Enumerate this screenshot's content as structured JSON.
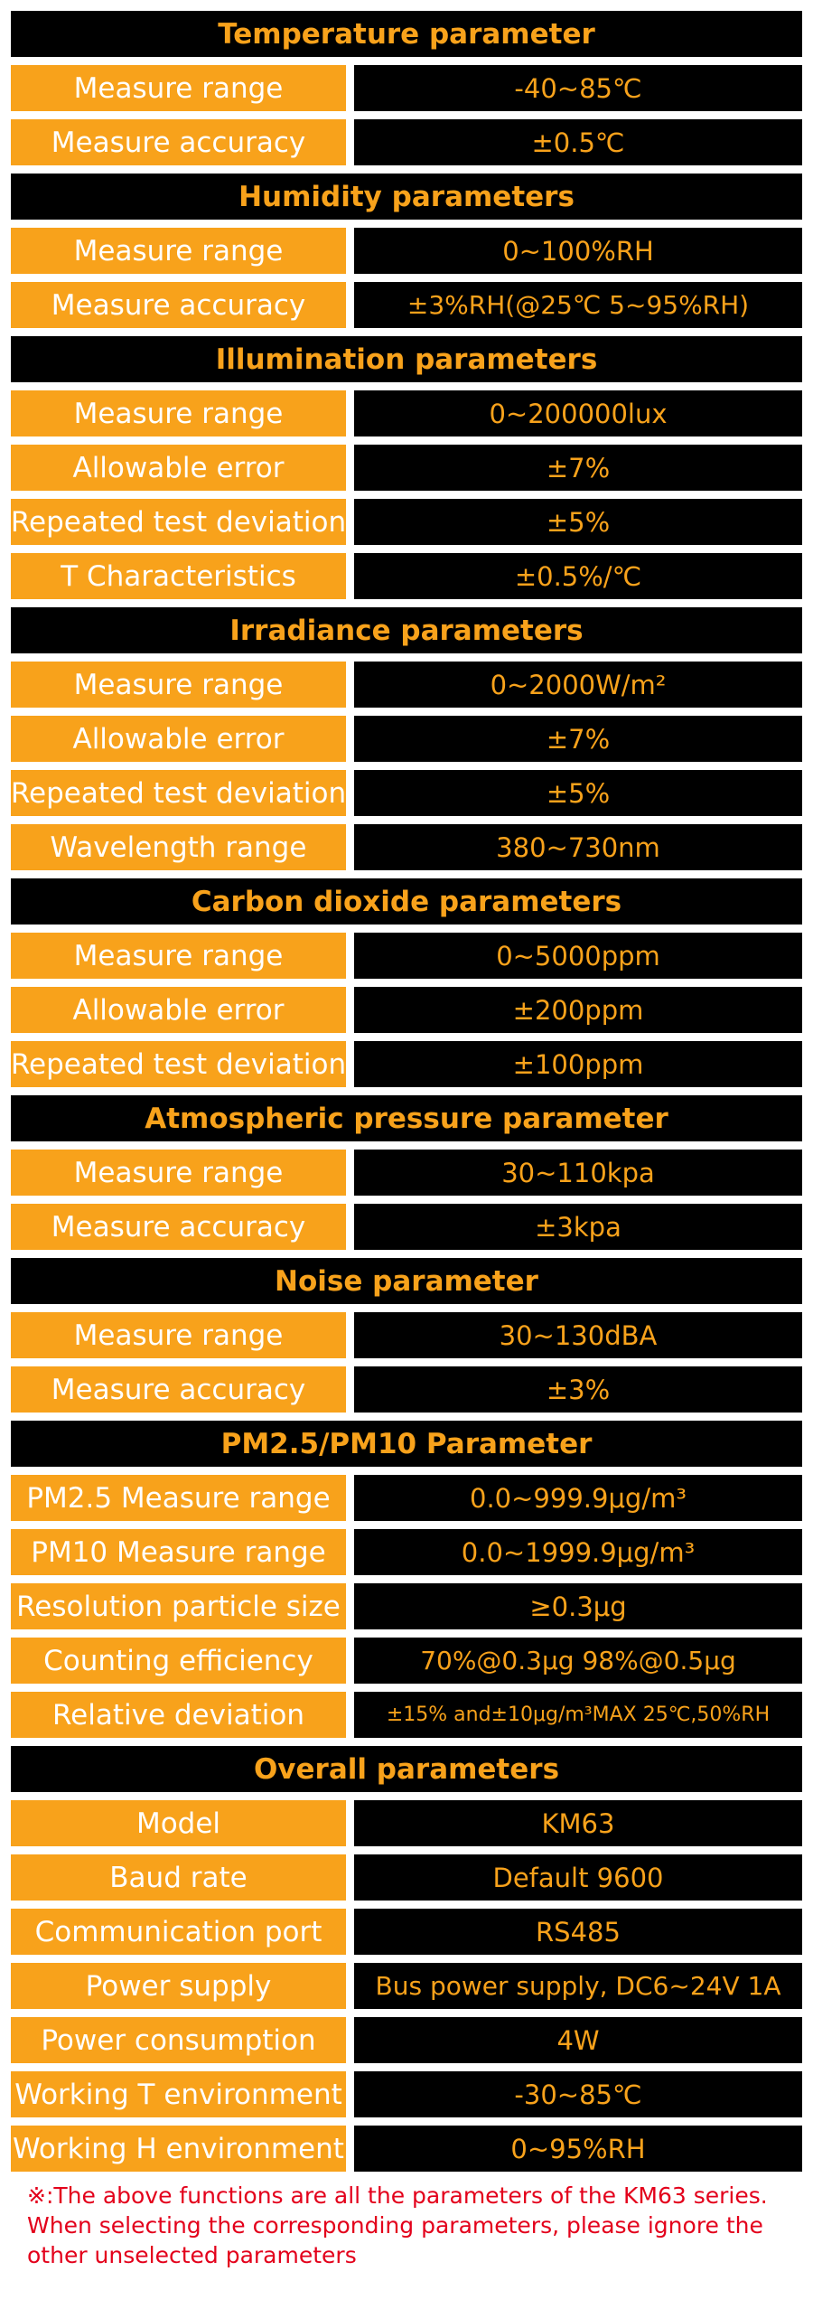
{
  "colors": {
    "accent": "#f8a21b",
    "header_bg": "#000000",
    "label_text": "#ffffff",
    "note_text": "#e3001b"
  },
  "sections": [
    {
      "title": "Temperature parameter",
      "rows": [
        {
          "label": "Measure range",
          "value": "-40~85℃"
        },
        {
          "label": "Measure accuracy",
          "value": "±0.5℃"
        }
      ]
    },
    {
      "title": "Humidity parameters",
      "rows": [
        {
          "label": "Measure range",
          "value": "0~100%RH"
        },
        {
          "label": "Measure accuracy",
          "value": "±3%RH(@25℃  5~95%RH)"
        }
      ]
    },
    {
      "title": "Illumination parameters",
      "rows": [
        {
          "label": "Measure range",
          "value": "0~200000lux"
        },
        {
          "label": "Allowable error",
          "value": "±7%"
        },
        {
          "label": "Repeated test deviation",
          "value": "±5%"
        },
        {
          "label": "T Characteristics",
          "value": "±0.5%/℃"
        }
      ]
    },
    {
      "title": "Irradiance parameters",
      "rows": [
        {
          "label": "Measure range",
          "value": "0~2000W/m²"
        },
        {
          "label": "Allowable error",
          "value": "±7%"
        },
        {
          "label": "Repeated test deviation",
          "value": "±5%"
        },
        {
          "label": "Wavelength range",
          "value": "380~730nm"
        }
      ]
    },
    {
      "title": "Carbon dioxide parameters",
      "rows": [
        {
          "label": "Measure range",
          "value": "0~5000ppm"
        },
        {
          "label": "Allowable error",
          "value": "±200ppm"
        },
        {
          "label": "Repeated test deviation",
          "value": "±100ppm"
        }
      ]
    },
    {
      "title": "Atmospheric pressure parameter",
      "rows": [
        {
          "label": "Measure range",
          "value": "30~110kpa"
        },
        {
          "label": "Measure accuracy",
          "value": "±3kpa"
        }
      ]
    },
    {
      "title": "Noise parameter",
      "rows": [
        {
          "label": "Measure range",
          "value": "30~130dBA"
        },
        {
          "label": "Measure accuracy",
          "value": "±3%"
        }
      ]
    },
    {
      "title": "PM2.5/PM10 Parameter",
      "rows": [
        {
          "label": "PM2.5 Measure range",
          "value": "0.0~999.9μg/m³"
        },
        {
          "label": "PM10 Measure range",
          "value": "0.0~1999.9μg/m³"
        },
        {
          "label": "Resolution particle size",
          "value": "≥0.3μg"
        },
        {
          "label": "Counting efficiency",
          "value": "70%@0.3μg  98%@0.5μg"
        },
        {
          "label": "Relative deviation",
          "value": "±15% and±10μg/m³MAX 25℃,50%RH"
        }
      ]
    },
    {
      "title": "Overall parameters",
      "rows": [
        {
          "label": "Model",
          "value": "KM63"
        },
        {
          "label": "Baud rate",
          "value": "Default 9600"
        },
        {
          "label": "Communication port",
          "value": "RS485"
        },
        {
          "label": "Power supply",
          "value": "Bus power supply, DC6~24V 1A"
        },
        {
          "label": "Power consumption",
          "value": "4W"
        },
        {
          "label": "Working T environment",
          "value": "-30~85℃"
        },
        {
          "label": "Working H environment",
          "value": "0~95%RH"
        }
      ]
    }
  ],
  "note": "※:The above functions are all the parameters of the KM63 series. When selecting the corresponding parameters, please ignore the other unselected parameters"
}
